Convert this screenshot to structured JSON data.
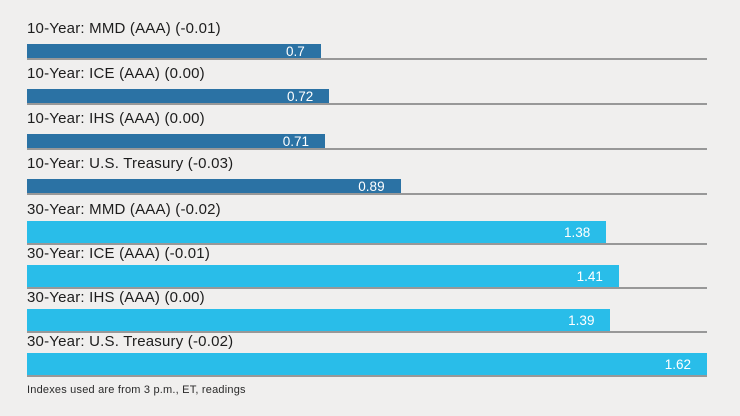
{
  "chart_data": {
    "type": "bar",
    "orientation": "horizontal",
    "xlim": [
      0,
      1.62
    ],
    "grid": false,
    "legend": "none",
    "rows": [
      {
        "label": "10-Year: MMD (AAA) (-0.01)",
        "value": 0.7,
        "display_value": "0.7",
        "series": "10-year"
      },
      {
        "label": "10-Year: ICE (AAA) (0.00)",
        "value": 0.72,
        "display_value": "0.72",
        "series": "10-year"
      },
      {
        "label": "10-Year: IHS (AAA) (0.00)",
        "value": 0.71,
        "display_value": "0.71",
        "series": "10-year"
      },
      {
        "label": "10-Year: U.S. Treasury (-0.03)",
        "value": 0.89,
        "display_value": "0.89",
        "series": "10-year"
      },
      {
        "label": "30-Year: MMD (AAA) (-0.02)",
        "value": 1.38,
        "display_value": "1.38",
        "series": "30-year"
      },
      {
        "label": "30-Year: ICE (AAA) (-0.01)",
        "value": 1.41,
        "display_value": "1.41",
        "series": "30-year"
      },
      {
        "label": "30-Year: IHS (AAA) (0.00)",
        "value": 1.39,
        "display_value": "1.39",
        "series": "30-year"
      },
      {
        "label": "30-Year: U.S. Treasury (-0.02)",
        "value": 1.62,
        "display_value": "1.62",
        "series": "30-year"
      }
    ],
    "footnote": "Indexes used are from 3 p.m., ET, readings"
  },
  "colors": {
    "bar_10_year": "#2b72a4",
    "bar_30_year": "#29bde9",
    "background": "#f0efee",
    "baseline": "#989898",
    "label_text": "#1d1d1d",
    "value_text": "#ffffff"
  }
}
